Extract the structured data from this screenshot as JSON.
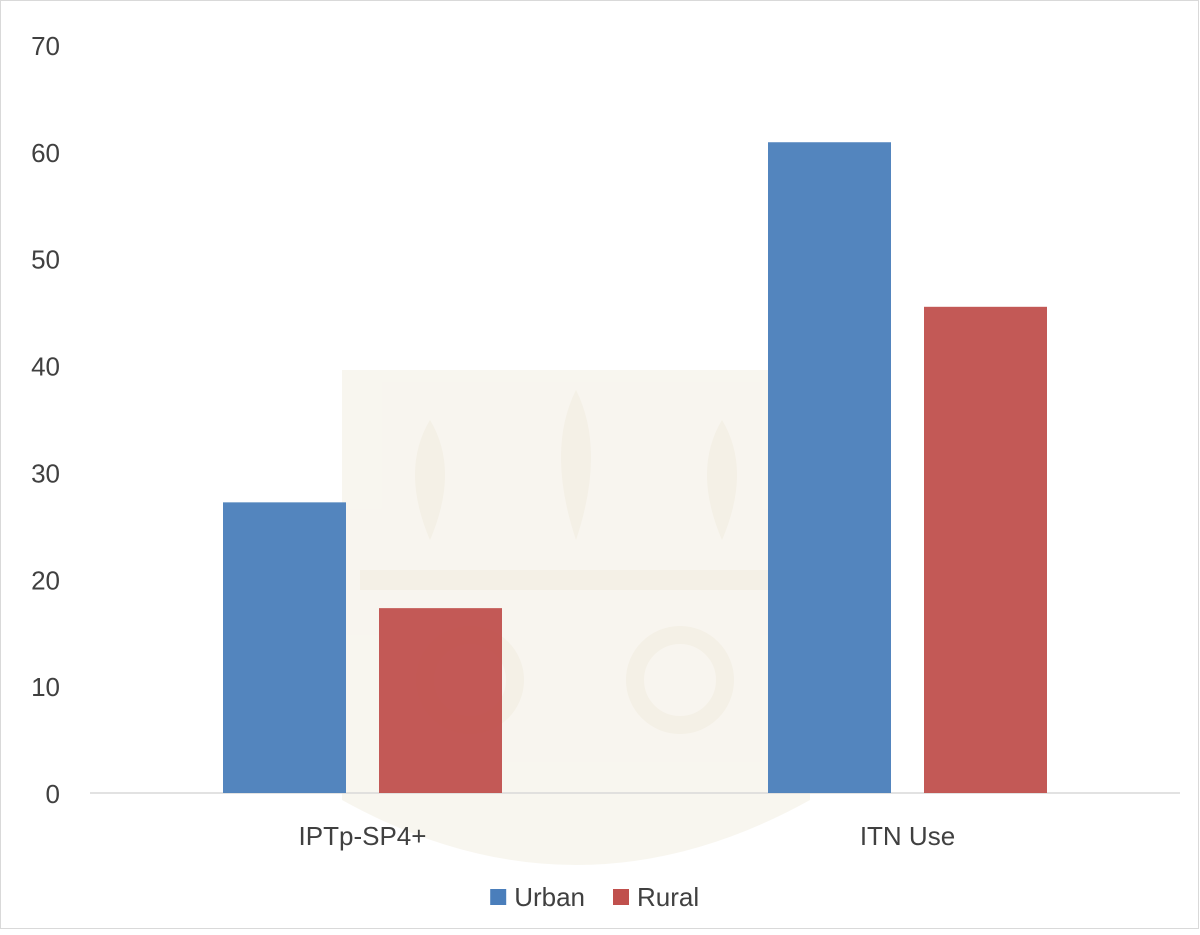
{
  "chart_data": {
    "type": "bar",
    "title": "",
    "xlabel": "",
    "ylabel": "",
    "categories": [
      "IPTp-SP4+",
      "ITN Use"
    ],
    "series": [
      {
        "name": "Urban",
        "values": [
          27.2,
          60.9
        ],
        "color": "#4a7ebb"
      },
      {
        "name": "Rural",
        "values": [
          17.3,
          45.5
        ],
        "color": "#c0504d"
      }
    ],
    "ylim": [
      0,
      70
    ],
    "yticks": [
      0,
      10,
      20,
      30,
      40,
      50,
      60,
      70
    ],
    "grid": false,
    "legend_position": "bottom"
  },
  "watermark": {
    "name": "crest-watermark",
    "color": "#f3eee2"
  }
}
